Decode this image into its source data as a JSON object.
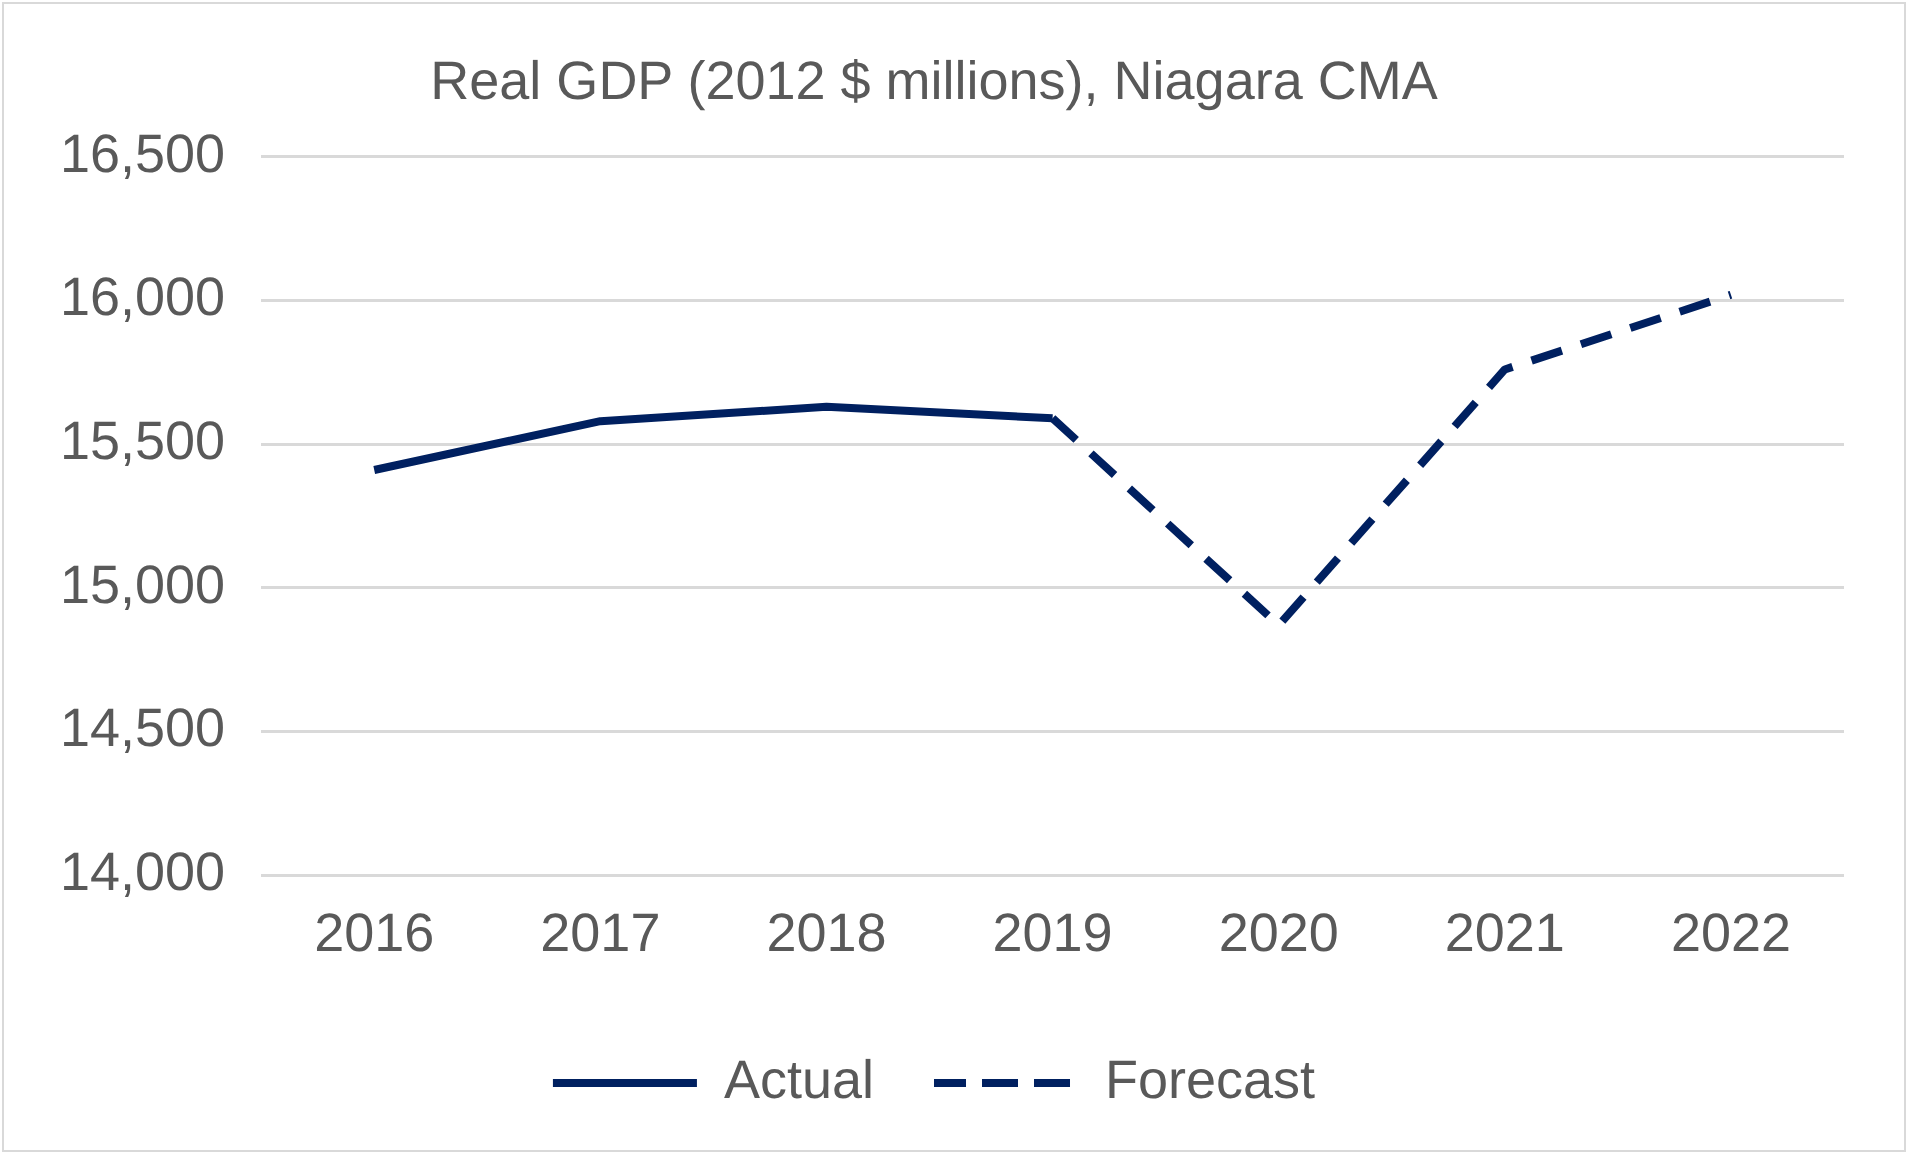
{
  "chart_data": {
    "type": "line",
    "title": "Real GDP (2012 $ millions), Niagara CMA",
    "categories": [
      "2016",
      "2017",
      "2018",
      "2019",
      "2020",
      "2021",
      "2022"
    ],
    "series": [
      {
        "name": "Actual",
        "color": "#002060",
        "line_style": "solid",
        "values": [
          15410,
          15580,
          15630,
          15590,
          null,
          null,
          null
        ]
      },
      {
        "name": "Forecast",
        "color": "#002060",
        "line_style": "dashed",
        "values": [
          null,
          null,
          null,
          15590,
          14870,
          15760,
          16020
        ]
      }
    ],
    "ylim": [
      14000,
      16500
    ],
    "yticks": [
      {
        "value": 14000,
        "label": "14,000"
      },
      {
        "value": 14500,
        "label": "14,500"
      },
      {
        "value": 15000,
        "label": "15,000"
      },
      {
        "value": 15500,
        "label": "15,500"
      },
      {
        "value": 16000,
        "label": "16,000"
      },
      {
        "value": 16500,
        "label": "16,500"
      }
    ],
    "grid": "y",
    "legend": "bottom",
    "marker": "none"
  }
}
